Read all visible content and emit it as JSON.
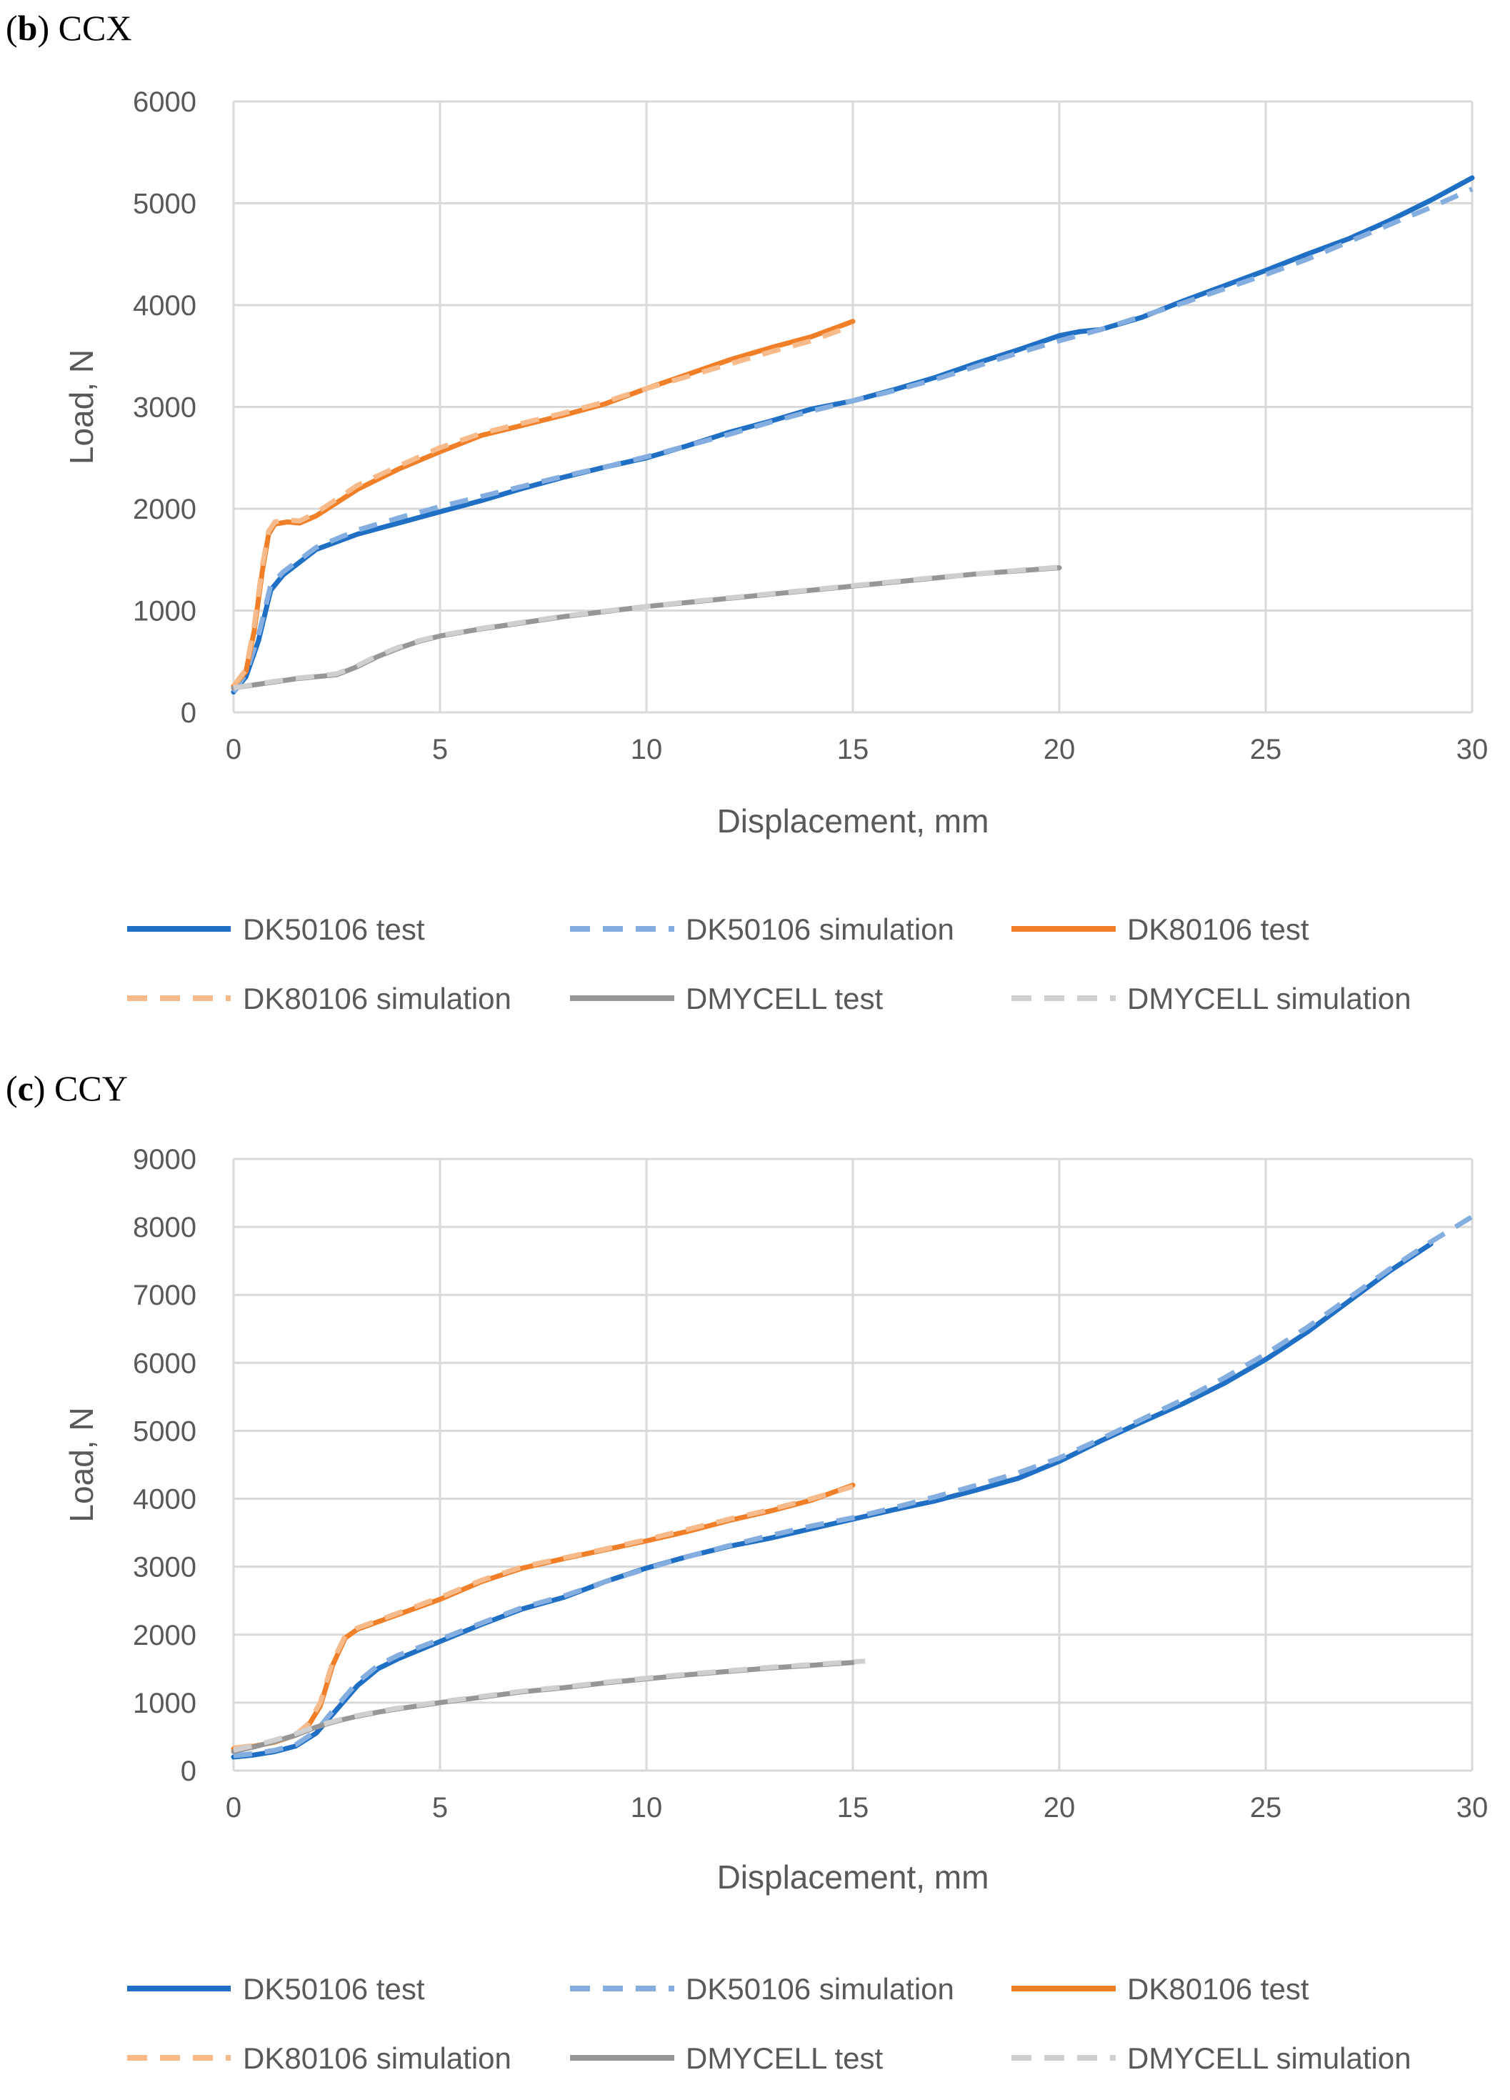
{
  "chart_data": [
    {
      "type": "line",
      "panel_letter": "b",
      "panel_name": "CCX",
      "xlabel": "Displacement, mm",
      "ylabel": "Load, N",
      "xlim": [
        0,
        30
      ],
      "ylim": [
        0,
        6000
      ],
      "xticks": [
        0,
        5,
        10,
        15,
        20,
        25,
        30
      ],
      "yticks": [
        0,
        1000,
        2000,
        3000,
        4000,
        5000,
        6000
      ],
      "grid": true,
      "legend_position": "bottom",
      "series": [
        {
          "name": "DK50106 test",
          "color": "#1f6fc5",
          "style": "solid",
          "x": [
            0,
            0.3,
            0.6,
            0.9,
            1.2,
            2,
            3,
            4,
            5,
            6,
            7,
            8,
            9,
            10,
            11,
            12,
            13,
            14,
            15,
            16,
            17,
            18,
            19,
            20,
            20.5,
            21,
            22,
            23,
            24,
            25,
            26,
            27,
            28,
            29,
            30
          ],
          "y": [
            200,
            350,
            700,
            1200,
            1350,
            1600,
            1750,
            1860,
            1970,
            2080,
            2200,
            2310,
            2410,
            2500,
            2620,
            2750,
            2860,
            2980,
            3060,
            3170,
            3290,
            3430,
            3560,
            3700,
            3740,
            3760,
            3880,
            4040,
            4190,
            4340,
            4500,
            4650,
            4830,
            5030,
            5250
          ]
        },
        {
          "name": "DK50106 simulation",
          "color": "#85aee0",
          "style": "dashed",
          "x": [
            0,
            0.3,
            0.6,
            0.9,
            1.2,
            2,
            3,
            4,
            5,
            6,
            7,
            8,
            9,
            10,
            11,
            12,
            13,
            14,
            15,
            16,
            17,
            18,
            19,
            20,
            21,
            22,
            23,
            24,
            25,
            26,
            27,
            28,
            29,
            30
          ],
          "y": [
            200,
            380,
            750,
            1250,
            1380,
            1620,
            1790,
            1910,
            2020,
            2120,
            2220,
            2320,
            2410,
            2510,
            2620,
            2730,
            2850,
            2960,
            3060,
            3160,
            3270,
            3400,
            3530,
            3650,
            3760,
            3890,
            4020,
            4160,
            4300,
            4450,
            4620,
            4790,
            4960,
            5140
          ]
        },
        {
          "name": "DK80106 test",
          "color": "#f07f27",
          "style": "solid",
          "x": [
            0,
            0.3,
            0.5,
            0.7,
            0.85,
            1,
            1.3,
            1.6,
            2,
            3,
            4,
            5,
            6,
            7,
            8,
            9,
            10,
            11,
            12,
            13,
            14,
            15
          ],
          "y": [
            260,
            400,
            800,
            1400,
            1750,
            1850,
            1870,
            1860,
            1930,
            2190,
            2390,
            2560,
            2720,
            2820,
            2920,
            3030,
            3180,
            3320,
            3460,
            3580,
            3690,
            3840
          ]
        },
        {
          "name": "DK80106 simulation",
          "color": "#f7ba8a",
          "style": "dashed",
          "x": [
            0,
            0.3,
            0.5,
            0.7,
            0.85,
            1,
            1.3,
            1.6,
            2,
            3,
            4,
            5,
            6,
            7,
            8,
            9,
            10,
            11,
            12,
            13,
            14,
            15
          ],
          "y": [
            260,
            420,
            850,
            1450,
            1780,
            1870,
            1890,
            1880,
            1960,
            2230,
            2420,
            2600,
            2740,
            2840,
            2940,
            3050,
            3180,
            3300,
            3420,
            3540,
            3650,
            3800
          ]
        },
        {
          "name": "DMYCELL test",
          "color": "#969696",
          "style": "solid",
          "x": [
            0,
            0.5,
            1,
            1.5,
            2,
            2.5,
            3,
            3.5,
            4,
            4.5,
            5,
            6,
            7,
            8,
            9,
            10,
            11,
            12,
            13,
            14,
            15,
            16,
            17,
            18,
            19,
            20
          ],
          "y": [
            240,
            270,
            300,
            330,
            350,
            370,
            450,
            550,
            630,
            700,
            750,
            820,
            880,
            940,
            990,
            1040,
            1080,
            1120,
            1160,
            1200,
            1240,
            1280,
            1320,
            1360,
            1390,
            1420
          ]
        },
        {
          "name": "DMYCELL simulation",
          "color": "#cfcfcf",
          "style": "dashed",
          "x": [
            0,
            0.5,
            1,
            1.5,
            2,
            2.5,
            3,
            3.5,
            4,
            4.5,
            5,
            6,
            7,
            8,
            9,
            10,
            11,
            12,
            13,
            14,
            15,
            16,
            17,
            18,
            19,
            20
          ],
          "y": [
            240,
            275,
            305,
            335,
            355,
            380,
            460,
            560,
            640,
            705,
            755,
            825,
            885,
            945,
            995,
            1040,
            1085,
            1125,
            1165,
            1205,
            1245,
            1285,
            1325,
            1360,
            1395,
            1425
          ]
        }
      ]
    },
    {
      "type": "line",
      "panel_letter": "c",
      "panel_name": "CCY",
      "xlabel": "Displacement, mm",
      "ylabel": "Load, N",
      "xlim": [
        0,
        30
      ],
      "ylim": [
        0,
        9000
      ],
      "xticks": [
        0,
        5,
        10,
        15,
        20,
        25,
        30
      ],
      "yticks": [
        0,
        1000,
        2000,
        3000,
        4000,
        5000,
        6000,
        7000,
        8000,
        9000
      ],
      "grid": true,
      "legend_position": "bottom",
      "series": [
        {
          "name": "DK50106 test",
          "color": "#1f6fc5",
          "style": "solid",
          "x": [
            0,
            0.5,
            1,
            1.5,
            2,
            2.5,
            3,
            3.5,
            4,
            5,
            6,
            7,
            8,
            9,
            10,
            11,
            12,
            13,
            14,
            15,
            16,
            17,
            18,
            19,
            20,
            21,
            22,
            23,
            24,
            25,
            26,
            27,
            28,
            29
          ],
          "y": [
            200,
            230,
            280,
            360,
            550,
            900,
            1250,
            1500,
            1650,
            1900,
            2150,
            2380,
            2550,
            2780,
            2980,
            3150,
            3300,
            3420,
            3560,
            3700,
            3840,
            3970,
            4130,
            4300,
            4550,
            4850,
            5130,
            5400,
            5700,
            6050,
            6450,
            6900,
            7350,
            7750
          ]
        },
        {
          "name": "DK50106 simulation",
          "color": "#85aee0",
          "style": "dashed",
          "x": [
            0,
            0.5,
            1,
            1.5,
            2,
            2.5,
            3,
            3.5,
            4,
            5,
            6,
            7,
            8,
            9,
            10,
            11,
            12,
            13,
            14,
            15,
            16,
            17,
            18,
            19,
            20,
            21,
            22,
            23,
            24,
            25,
            26,
            27,
            28,
            29,
            30
          ],
          "y": [
            220,
            250,
            300,
            380,
            580,
            950,
            1300,
            1550,
            1700,
            1930,
            2170,
            2400,
            2570,
            2780,
            2970,
            3150,
            3310,
            3460,
            3600,
            3720,
            3870,
            4030,
            4200,
            4380,
            4600,
            4880,
            5170,
            5460,
            5780,
            6130,
            6520,
            6950,
            7380,
            7780,
            8150
          ]
        },
        {
          "name": "DK80106 test",
          "color": "#f07f27",
          "style": "solid",
          "x": [
            0,
            0.5,
            1,
            1.5,
            1.8,
            2.1,
            2.4,
            2.7,
            3,
            4,
            5,
            6,
            7,
            8,
            9,
            10,
            11,
            12,
            13,
            14,
            15
          ],
          "y": [
            320,
            360,
            420,
            520,
            650,
            950,
            1550,
            1950,
            2080,
            2300,
            2520,
            2780,
            2980,
            3120,
            3250,
            3380,
            3520,
            3680,
            3820,
            3980,
            4200
          ]
        },
        {
          "name": "DK80106 simulation",
          "color": "#f7ba8a",
          "style": "dashed",
          "x": [
            0,
            0.5,
            1,
            1.5,
            1.8,
            2.1,
            2.4,
            2.7,
            3,
            4,
            5,
            6,
            7,
            8,
            9,
            10,
            11,
            12,
            13,
            14,
            15
          ],
          "y": [
            330,
            370,
            430,
            530,
            680,
            1000,
            1600,
            1980,
            2100,
            2320,
            2550,
            2800,
            3000,
            3130,
            3260,
            3400,
            3550,
            3700,
            3840,
            4000,
            4180
          ]
        },
        {
          "name": "DMYCELL test",
          "color": "#969696",
          "style": "solid",
          "x": [
            0,
            0.5,
            1,
            1.5,
            2,
            2.5,
            3,
            3.5,
            4,
            5,
            6,
            7,
            8,
            9,
            10,
            11,
            12,
            13,
            14,
            15
          ],
          "y": [
            280,
            350,
            430,
            520,
            640,
            730,
            800,
            860,
            910,
            1000,
            1080,
            1160,
            1220,
            1290,
            1350,
            1410,
            1460,
            1510,
            1550,
            1590
          ]
        },
        {
          "name": "DMYCELL simulation",
          "color": "#cfcfcf",
          "style": "dashed",
          "x": [
            0,
            0.5,
            1,
            1.5,
            2,
            2.5,
            3,
            3.5,
            4,
            5,
            6,
            7,
            8,
            9,
            10,
            11,
            12,
            13,
            14,
            15,
            15.3
          ],
          "y": [
            300,
            370,
            450,
            540,
            650,
            740,
            810,
            870,
            920,
            1010,
            1090,
            1170,
            1230,
            1300,
            1360,
            1420,
            1470,
            1520,
            1560,
            1600,
            1610
          ]
        }
      ]
    }
  ]
}
